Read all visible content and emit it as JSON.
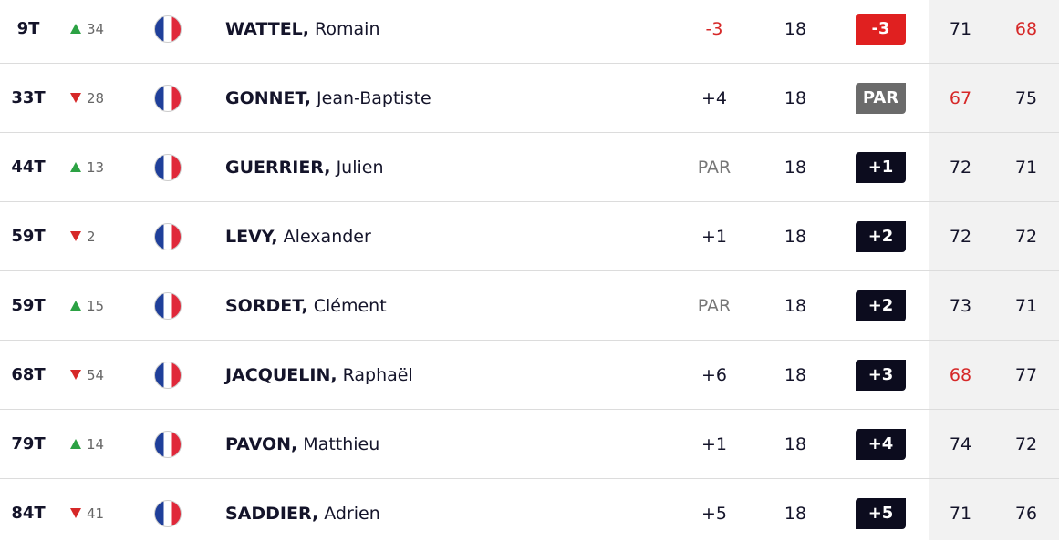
{
  "table": {
    "rows": [
      {
        "position": "9T",
        "movement": {
          "direction": "up",
          "places": 34
        },
        "last_name": "WATTEL,",
        "first_name": "Romain",
        "today": "-3",
        "thru": 18,
        "total": "-3",
        "rounds": [
          71,
          68
        ]
      },
      {
        "position": "33T",
        "movement": {
          "direction": "down",
          "places": 28
        },
        "last_name": "GONNET,",
        "first_name": "Jean-Baptiste",
        "today": "+4",
        "thru": 18,
        "total": "PAR",
        "rounds": [
          67,
          75
        ]
      },
      {
        "position": "44T",
        "movement": {
          "direction": "up",
          "places": 13
        },
        "last_name": "GUERRIER,",
        "first_name": "Julien",
        "today": "PAR",
        "thru": 18,
        "total": "+1",
        "rounds": [
          72,
          71
        ]
      },
      {
        "position": "59T",
        "movement": {
          "direction": "down",
          "places": 2
        },
        "last_name": "LEVY,",
        "first_name": "Alexander",
        "today": "+1",
        "thru": 18,
        "total": "+2",
        "rounds": [
          72,
          72
        ]
      },
      {
        "position": "59T",
        "movement": {
          "direction": "up",
          "places": 15
        },
        "last_name": "SORDET,",
        "first_name": "Clément",
        "today": "PAR",
        "thru": 18,
        "total": "+2",
        "rounds": [
          73,
          71
        ]
      },
      {
        "position": "68T",
        "movement": {
          "direction": "down",
          "places": 54
        },
        "last_name": "JACQUELIN,",
        "first_name": "Raphaël",
        "today": "+6",
        "thru": 18,
        "total": "+3",
        "rounds": [
          68,
          77
        ]
      },
      {
        "position": "79T",
        "movement": {
          "direction": "up",
          "places": 14
        },
        "last_name": "PAVON,",
        "first_name": "Matthieu",
        "today": "+1",
        "thru": 18,
        "total": "+4",
        "rounds": [
          74,
          72
        ]
      },
      {
        "position": "84T",
        "movement": {
          "direction": "down",
          "places": 41
        },
        "last_name": "SADDIER,",
        "first_name": "Adrien",
        "today": "+5",
        "thru": 18,
        "total": "+5",
        "rounds": [
          71,
          76
        ]
      }
    ]
  }
}
